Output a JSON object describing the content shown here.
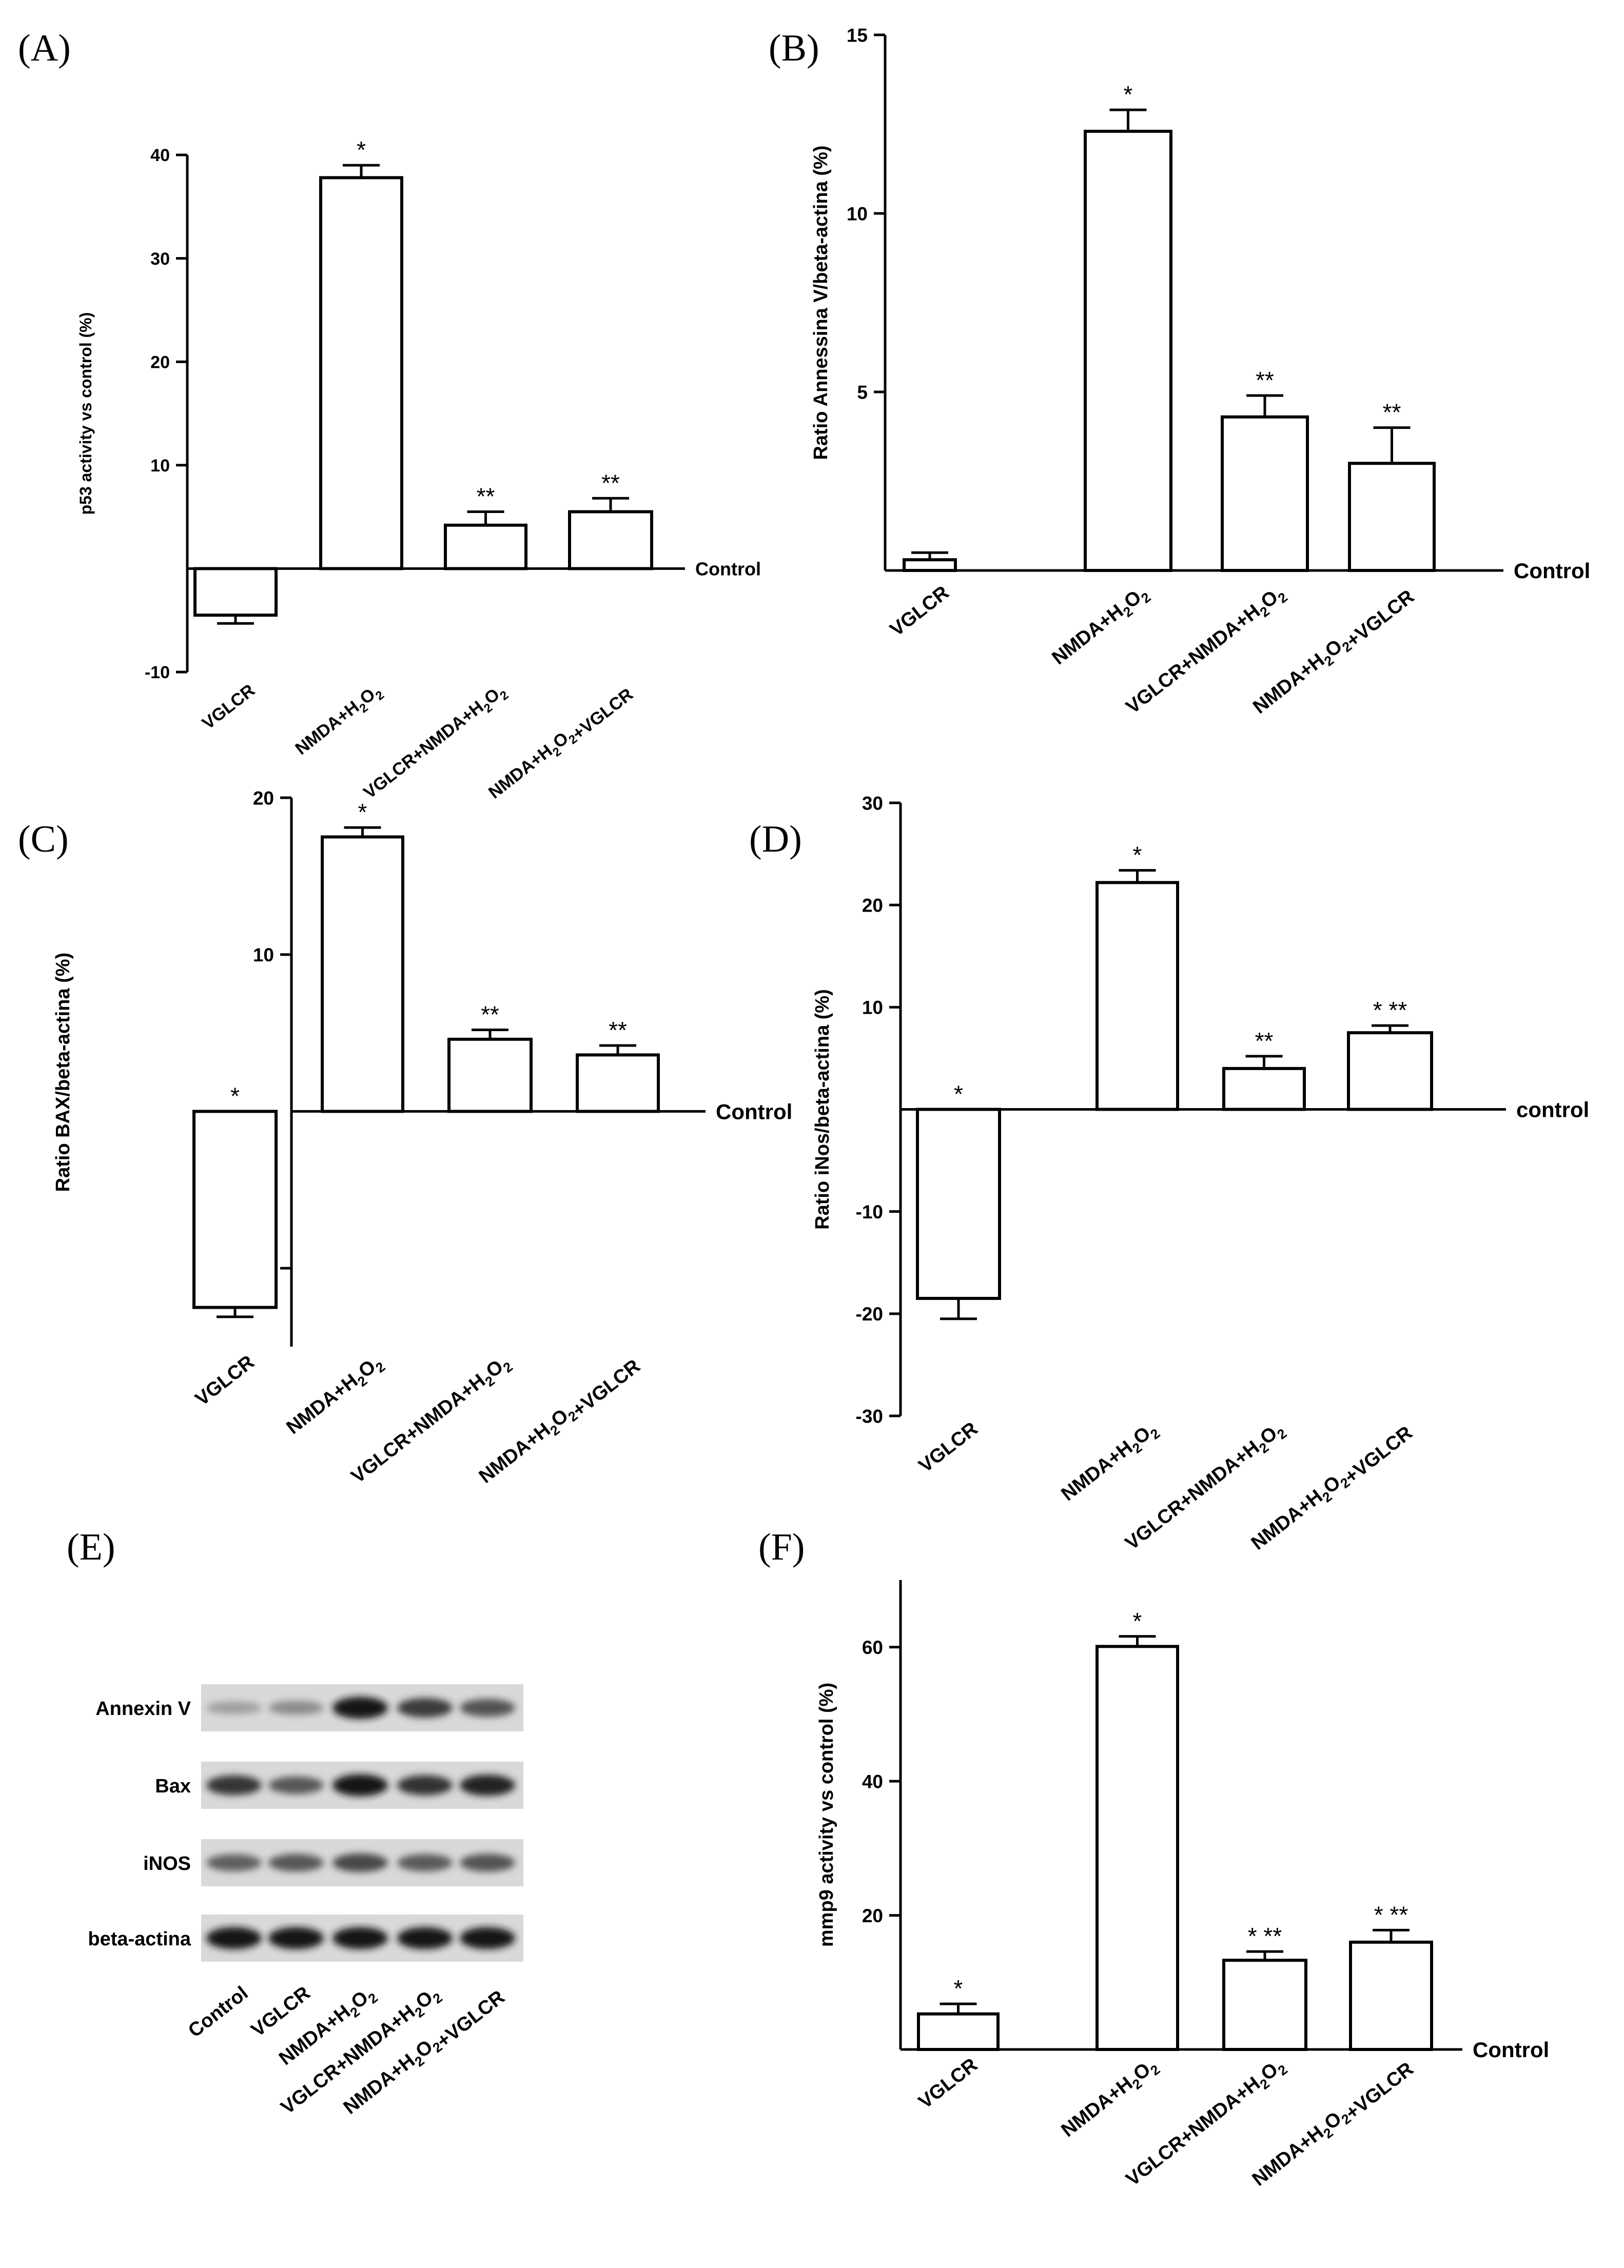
{
  "colors": {
    "ink": "#000000",
    "bar_fill": "#ffffff",
    "background": "#ffffff"
  },
  "chart_data": [
    {
      "id": "A",
      "type": "bar",
      "panel_label": "(A)",
      "ylabel": "p53 activity vs control (%)",
      "baseline_label": "Control",
      "categories": [
        "VGLCR",
        "NMDA+H2O2",
        "VGLCR+NMDA+H2O2",
        "NMDA+H2O2+VGLCR"
      ],
      "values": [
        -4.5,
        37.8,
        4.2,
        5.5
      ],
      "errors": [
        0.8,
        1.2,
        1.3,
        1.3
      ],
      "significance": [
        "",
        "*",
        "**",
        "**"
      ],
      "ylim": [
        -10,
        40
      ],
      "yticks": [
        -10,
        10,
        20,
        30,
        40
      ]
    },
    {
      "id": "B",
      "type": "bar",
      "panel_label": "(B)",
      "ylabel": "Ratio Annessina V/beta-actina (%)",
      "baseline_label": "Control",
      "categories": [
        "VGLCR",
        "NMDA+H2O2",
        "VGLCR+NMDA+H2O2",
        "NMDA+H2O2+VGLCR"
      ],
      "values": [
        0.3,
        12.3,
        4.3,
        3.0
      ],
      "errors": [
        0.2,
        0.6,
        0.6,
        1.0
      ],
      "significance": [
        "",
        "*",
        "**",
        "**"
      ],
      "ylim": [
        0,
        15
      ],
      "yticks": [
        5,
        10,
        15
      ]
    },
    {
      "id": "C",
      "type": "bar",
      "panel_label": "(C)",
      "ylabel": "Ratio BAX/beta-actina (%)",
      "baseline_label": "Control",
      "categories": [
        "VGLCR",
        "NMDA+H2O2",
        "VGLCR+NMDA+H2O2",
        "NMDA+H2O2+VGLCR"
      ],
      "values": [
        -12.5,
        17.5,
        4.6,
        3.6
      ],
      "errors": [
        0.6,
        0.6,
        0.6,
        0.6
      ],
      "significance": [
        "*",
        "*",
        "**",
        "**"
      ],
      "ylim": [
        -15,
        20
      ],
      "yticks": [
        -10,
        10,
        20
      ]
    },
    {
      "id": "D",
      "type": "bar",
      "panel_label": "(D)",
      "ylabel": "Ratio iNos/beta-actina (%)",
      "baseline_label": "control",
      "categories": [
        "VGLCR",
        "NMDA+H2O2",
        "VGLCR+NMDA+H2O2",
        "NMDA+H2O2+VGLCR"
      ],
      "values": [
        -18.5,
        22.2,
        4.0,
        7.5
      ],
      "errors": [
        2.0,
        1.2,
        1.2,
        0.7
      ],
      "significance": [
        "*",
        "*",
        "**",
        "* **"
      ],
      "ylim": [
        -30,
        30
      ],
      "yticks": [
        -30,
        -20,
        -10,
        10,
        20,
        30
      ]
    },
    {
      "id": "F",
      "type": "bar",
      "panel_label": "(F)",
      "ylabel": "mmp9 activity vs control (%)",
      "baseline_label": "Control",
      "categories": [
        "VGLCR",
        "NMDA+H2O2",
        "VGLCR+NMDA+H2O2",
        "NMDA+H2O2+VGLCR"
      ],
      "values": [
        5.3,
        60.1,
        13.3,
        16.0
      ],
      "errors": [
        1.5,
        1.5,
        1.3,
        1.8
      ],
      "significance": [
        "*",
        "*",
        "* **",
        "* **"
      ],
      "ylim": [
        0,
        70
      ],
      "yticks": [
        20,
        40,
        60
      ]
    }
  ],
  "western_blot": {
    "panel_label": "(E)",
    "rows": [
      {
        "label": "Annexin V",
        "intensities": [
          0.22,
          0.32,
          0.95,
          0.75,
          0.62
        ]
      },
      {
        "label": "Bax",
        "intensities": [
          0.78,
          0.6,
          0.95,
          0.8,
          0.88
        ]
      },
      {
        "label": "iNOS",
        "intensities": [
          0.55,
          0.6,
          0.68,
          0.58,
          0.62
        ]
      },
      {
        "label": "beta-actina",
        "intensities": [
          0.95,
          0.95,
          0.95,
          0.95,
          0.95
        ]
      }
    ],
    "lanes": [
      "Control",
      "VGLCR",
      "NMDA+H2O2",
      "VGLCR+NMDA+H2O2",
      "NMDA+H2O2+VGLCR"
    ]
  }
}
